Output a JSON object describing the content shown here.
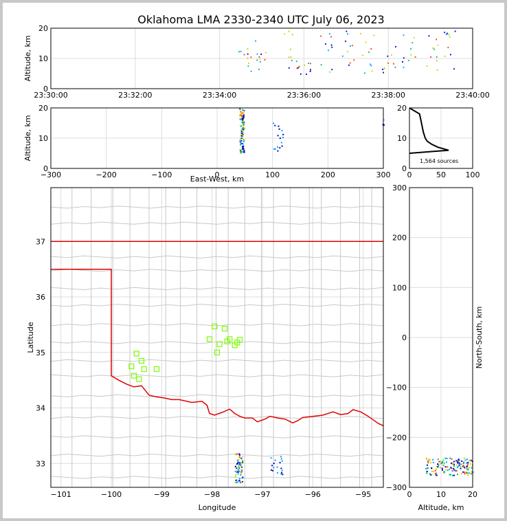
{
  "title": "Oklahoma LMA 2330-2340 UTC July 06, 2023",
  "colors": {
    "border_red": "#e00000",
    "county": "#c8c8c8",
    "station": "#7cfc00",
    "grid": "#dcdcdc"
  },
  "panels": {
    "time_height": {
      "ylabel": "Altitude, km",
      "yticks": [
        "0",
        "10",
        "20"
      ],
      "xticks": [
        "23:30:00",
        "23:32:00",
        "23:34:00",
        "23:36:00",
        "23:38:00",
        "23:40:00"
      ]
    },
    "ew_height": {
      "ylabel": "Altitude, km",
      "xlabel": "East-West, km",
      "yticks": [
        "0",
        "10",
        "20"
      ],
      "xticks": [
        "−300",
        "−200",
        "−100",
        "0",
        "100",
        "200",
        "300"
      ]
    },
    "histogram": {
      "yticks": [
        "0",
        "10",
        "20"
      ],
      "xticks": [
        "0",
        "50",
        "100"
      ],
      "note": "1,564 sources"
    },
    "plan": {
      "xlabel": "Longitude",
      "ylabel": "Latitude",
      "xticks": [
        "−101",
        "−100",
        "−99",
        "−98",
        "−97",
        "−96",
        "−95"
      ],
      "yticks": [
        "33",
        "34",
        "35",
        "36",
        "37"
      ]
    },
    "ns_height": {
      "xlabel": "Altitude, km",
      "ylabel": "North-South, km",
      "xticks": [
        "0",
        "10",
        "20"
      ],
      "yticks": [
        "−300",
        "−200",
        "−100",
        "0",
        "100",
        "200",
        "300"
      ]
    }
  },
  "chart_data": [
    {
      "type": "scatter",
      "panel": "time_height",
      "x": [
        "23:34:35",
        "23:35:00",
        "23:35:40",
        "23:36:00",
        "23:36:30",
        "23:37:00",
        "23:37:30",
        "23:38:00",
        "23:38:30",
        "23:39:00",
        "23:39:30"
      ],
      "y_range_km": [
        [
          6,
          14
        ],
        [
          6,
          17
        ],
        [
          6,
          20
        ],
        [
          5,
          9
        ],
        [
          5,
          19
        ],
        [
          5,
          20
        ],
        [
          5,
          19
        ],
        [
          5,
          20
        ],
        [
          5,
          18
        ],
        [
          5,
          18
        ],
        [
          5,
          20
        ]
      ],
      "xlim": [
        "23:30:00",
        "23:40:00"
      ],
      "ylim": [
        0,
        20
      ],
      "ylabel": "Altitude, km"
    },
    {
      "type": "scatter",
      "panel": "ew_height",
      "clusters": [
        {
          "ew_km": [
            40,
            48
          ],
          "alt_km": [
            5,
            20
          ]
        },
        {
          "ew_km": [
            100,
            118
          ],
          "alt_km": [
            6,
            16
          ]
        },
        {
          "ew_km": [
            298,
            300
          ],
          "alt_km": [
            14,
            17
          ]
        }
      ],
      "xlim": [
        -300,
        300
      ],
      "ylim": [
        0,
        20
      ],
      "xlabel": "East-West, km",
      "ylabel": "Altitude, km"
    },
    {
      "type": "line",
      "panel": "histogram",
      "x": [
        0,
        62,
        45,
        35,
        28,
        25,
        22,
        20,
        18,
        16,
        0
      ],
      "y": [
        5,
        6,
        7,
        8,
        9,
        10,
        12,
        14,
        16,
        18,
        20
      ],
      "xlim": [
        0,
        100
      ],
      "ylim": [
        0,
        20
      ],
      "note": "1,564 sources"
    },
    {
      "type": "scatter",
      "panel": "plan_stations",
      "lon": [
        -99.6,
        -99.5,
        -99.4,
        -99.35,
        -99.55,
        -99.45,
        -99.1,
        -97.95,
        -98.05,
        -97.75,
        -97.65,
        -97.85,
        -97.7,
        -97.9,
        -97.45,
        -97.55,
        -97.5
      ],
      "lat": [
        34.75,
        34.98,
        34.85,
        34.7,
        34.58,
        34.52,
        34.7,
        35.47,
        35.24,
        35.43,
        35.24,
        35.15,
        35.2,
        35.0,
        35.23,
        35.13,
        35.18
      ],
      "xlim": [
        -101.2,
        -94.6
      ],
      "ylim": [
        32.57,
        37.97
      ],
      "xlabel": "Longitude",
      "ylabel": "Latitude"
    },
    {
      "type": "scatter",
      "panel": "plan_sources",
      "clusters": [
        {
          "lon": [
            -97.55,
            -97.4
          ],
          "lat": [
            32.65,
            33.2
          ]
        },
        {
          "lon": [
            -96.85,
            -96.6
          ],
          "lat": [
            32.8,
            33.15
          ]
        }
      ]
    },
    {
      "type": "scatter",
      "panel": "ns_height",
      "alt_km": [
        5,
        20
      ],
      "ns_km": [
        -275,
        -240
      ],
      "xlim": [
        0,
        20
      ],
      "ylim": [
        -300,
        300
      ],
      "xlabel": "Altitude, km",
      "ylabel": "North-South, km"
    }
  ]
}
